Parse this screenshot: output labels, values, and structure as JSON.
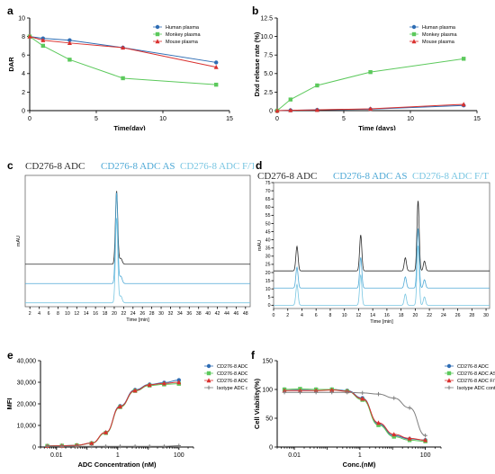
{
  "colors": {
    "human": "#2e6db4",
    "monkey": "#5cc95c",
    "mouse": "#d9302e",
    "isotype": "#7f7f7f",
    "adc_trace": "#2b2b2b",
    "as_trace": "#4fa9d6",
    "ft_trace": "#79c6e2"
  },
  "chart_data": [
    {
      "id": "a",
      "panel_label": "a",
      "type": "line",
      "xlabel": "Time(day)",
      "ylabel": "DAR",
      "xlim": [
        0,
        15
      ],
      "ylim": [
        0,
        10
      ],
      "xticks": [
        0,
        5,
        10,
        15
      ],
      "yticks": [
        0,
        2,
        4,
        6,
        8,
        10
      ],
      "legend": "right",
      "series": [
        {
          "name": "Human plasma",
          "color": "#2e6db4",
          "marker": "circle",
          "x": [
            0,
            1,
            3,
            7,
            14
          ],
          "y": [
            8.0,
            7.8,
            7.6,
            6.8,
            5.2
          ]
        },
        {
          "name": "Monkey plasma",
          "color": "#5cc95c",
          "marker": "square",
          "x": [
            0,
            1,
            3,
            7,
            14
          ],
          "y": [
            8.0,
            7.0,
            5.5,
            3.5,
            2.8
          ]
        },
        {
          "name": "Mouse plasma",
          "color": "#d9302e",
          "marker": "triangle",
          "x": [
            0,
            1,
            3,
            7,
            14
          ],
          "y": [
            8.0,
            7.6,
            7.3,
            6.8,
            4.7
          ]
        }
      ]
    },
    {
      "id": "b",
      "panel_label": "b",
      "type": "line",
      "xlabel": "Time (days)",
      "ylabel": "Dxd release rate (%)",
      "xlim": [
        0,
        15
      ],
      "ylim": [
        0,
        12.5
      ],
      "xticks": [
        0,
        5,
        10,
        15
      ],
      "yticks": [
        0,
        2.5,
        5,
        7.5,
        10,
        12.5
      ],
      "ytick_labels": [
        "0",
        "2.5",
        "5.0",
        "7.5",
        "10.0",
        "12.5"
      ],
      "legend": "top-right",
      "series": [
        {
          "name": "Human plasma",
          "color": "#2e6db4",
          "marker": "circle",
          "x": [
            0,
            1,
            3,
            7,
            14
          ],
          "y": [
            0,
            0.05,
            0.1,
            0.2,
            0.7
          ]
        },
        {
          "name": "Monkey plasma",
          "color": "#5cc95c",
          "marker": "square",
          "x": [
            0,
            1,
            3,
            7,
            14
          ],
          "y": [
            0,
            1.5,
            3.4,
            5.2,
            7.0
          ]
        },
        {
          "name": "Mouse plasma",
          "color": "#d9302e",
          "marker": "triangle",
          "x": [
            0,
            1,
            3,
            7,
            14
          ],
          "y": [
            0,
            0.05,
            0.1,
            0.25,
            0.85
          ]
        }
      ]
    },
    {
      "id": "c",
      "panel_label": "c",
      "type": "line",
      "legend_labels": [
        "CD276-8 ADC",
        "CD276-8 ADC AS",
        "CD276-8 ADC F/T"
      ],
      "xlabel": "Time [min]",
      "ylabel": "mAU",
      "xlim": [
        1,
        49
      ],
      "xticks": [
        2,
        4,
        6,
        8,
        10,
        12,
        14,
        16,
        18,
        20,
        22,
        24,
        26,
        28,
        30,
        32,
        34,
        36,
        38,
        40,
        42,
        44,
        46,
        48
      ],
      "ylim": [
        -5,
        165
      ],
      "series": [
        {
          "name": "CD276-8 ADC",
          "offset": 50,
          "peak_time": 20.5,
          "peak_height": 95
        },
        {
          "name": "CD276-8 ADC AS",
          "offset": 25,
          "peak_time": 20.5,
          "peak_height": 118
        },
        {
          "name": "CD276-8 ADC F/T",
          "offset": 0,
          "peak_time": 20.5,
          "peak_height": 110
        }
      ]
    },
    {
      "id": "d",
      "panel_label": "d",
      "type": "line",
      "legend_labels": [
        "CD276-8 ADC",
        "CD276-8 ADC AS",
        "CD276-8 ADC F/T"
      ],
      "xlabel": "Time [min]",
      "ylabel": "mAU",
      "xlim": [
        0,
        30.5
      ],
      "xticks": [
        0,
        2,
        4,
        6,
        8,
        10,
        12,
        14,
        16,
        18,
        20,
        22,
        24,
        26,
        28,
        30
      ],
      "ylim": [
        -2,
        75
      ],
      "yticks": [
        0,
        5,
        10,
        15,
        20,
        25,
        30,
        35,
        40,
        45,
        50,
        55,
        60,
        65,
        70,
        75
      ],
      "peaks": [
        {
          "t": 3.3,
          "h": 15
        },
        {
          "t": 12.3,
          "h": 22
        },
        {
          "t": 18.6,
          "h": 8
        },
        {
          "t": 20.4,
          "h": 43
        },
        {
          "t": 21.3,
          "h": 6
        }
      ],
      "series": [
        {
          "name": "CD276-8 ADC",
          "offset": 21
        },
        {
          "name": "CD276-8 ADC AS",
          "offset": 10.5
        },
        {
          "name": "CD276-8 ADC F/T",
          "offset": 0
        }
      ]
    },
    {
      "id": "e",
      "panel_label": "e",
      "type": "scatter",
      "xlabel": "ADC Concentration (nM)",
      "ylabel": "MFI",
      "xscale": "log",
      "xlim": [
        0.003,
        300
      ],
      "xticks": [
        0.01,
        1,
        100
      ],
      "xtick_labels": [
        "0.01",
        "1",
        "100"
      ],
      "ylim": [
        0,
        40000
      ],
      "yticks": [
        0,
        10000,
        20000,
        30000,
        40000
      ],
      "ytick_labels": [
        "0",
        "10,000",
        "20,000",
        "30,000",
        "40,000"
      ],
      "legend": "top-right",
      "series": [
        {
          "name": "CD276-8 ADC",
          "color": "#2e6db4",
          "marker": "circle",
          "x": [
            0.005,
            0.015,
            0.046,
            0.14,
            0.41,
            1.2,
            3.7,
            11,
            33,
            100
          ],
          "y": [
            500,
            600,
            800,
            1800,
            6700,
            19000,
            26500,
            29000,
            29800,
            31000
          ]
        },
        {
          "name": "CD276-8 ADC AS",
          "color": "#5cc95c",
          "marker": "square",
          "x": [
            0.005,
            0.015,
            0.046,
            0.14,
            0.41,
            1.2,
            3.7,
            11,
            33,
            100
          ],
          "y": [
            500,
            600,
            800,
            1700,
            6500,
            18500,
            26000,
            28500,
            29000,
            29300
          ]
        },
        {
          "name": "CD276-8 ADC F/T",
          "color": "#d9302e",
          "marker": "triangle",
          "x": [
            0.005,
            0.015,
            0.046,
            0.14,
            0.41,
            1.2,
            3.7,
            11,
            33,
            100
          ],
          "y": [
            500,
            600,
            800,
            1800,
            6800,
            18800,
            26200,
            28800,
            29500,
            30000
          ]
        },
        {
          "name": "Isotype ADC control",
          "color": "#7f7f7f",
          "marker": "cross",
          "x": [
            0.005,
            0.015,
            0.046,
            0.14,
            0.41,
            1.2,
            3.7,
            11,
            33,
            100
          ],
          "y": [
            300,
            300,
            300,
            300,
            300,
            300,
            300,
            300,
            300,
            600
          ]
        }
      ]
    },
    {
      "id": "f",
      "panel_label": "f",
      "type": "scatter",
      "xlabel": "Conc.(nM)",
      "ylabel": "Cell Viability(%)",
      "xscale": "log",
      "xlim": [
        0.003,
        300
      ],
      "xticks": [
        0.01,
        1,
        100
      ],
      "xtick_labels": [
        "0.01",
        "1",
        "100"
      ],
      "ylim": [
        0,
        150
      ],
      "yticks": [
        0,
        50,
        100,
        150
      ],
      "legend": "top-right",
      "series": [
        {
          "name": "CD276-8 ADC",
          "color": "#2e6db4",
          "marker": "circle",
          "x": [
            0.005,
            0.015,
            0.046,
            0.14,
            0.41,
            1.2,
            3.7,
            11,
            33,
            100
          ],
          "y": [
            100,
            100,
            100,
            100,
            98,
            85,
            40,
            20,
            14,
            12
          ]
        },
        {
          "name": "CD276-8 ADC AS",
          "color": "#5cc95c",
          "marker": "square",
          "x": [
            0.005,
            0.015,
            0.046,
            0.14,
            0.41,
            1.2,
            3.7,
            11,
            33,
            100
          ],
          "y": [
            100,
            101,
            100,
            100,
            97,
            82,
            38,
            18,
            12,
            10
          ]
        },
        {
          "name": "CD276-8 ADC F/T",
          "color": "#d9302e",
          "marker": "triangle",
          "x": [
            0.005,
            0.015,
            0.046,
            0.14,
            0.41,
            1.2,
            3.7,
            11,
            33,
            100
          ],
          "y": [
            98,
            98,
            98,
            99,
            97,
            84,
            42,
            22,
            15,
            12
          ]
        },
        {
          "name": "Isotype ADC control",
          "color": "#7f7f7f",
          "marker": "cross",
          "x": [
            0.005,
            0.015,
            0.046,
            0.14,
            0.41,
            1.2,
            3.7,
            11,
            33,
            100
          ],
          "y": [
            95,
            95,
            95,
            95,
            95,
            94,
            92,
            85,
            68,
            20
          ]
        }
      ]
    }
  ]
}
